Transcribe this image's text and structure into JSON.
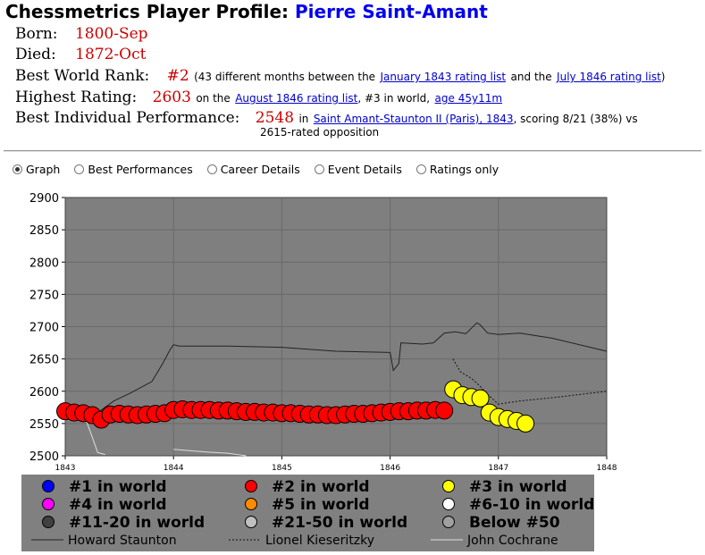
{
  "page": {
    "title_prefix": "Chessmetrics Player Profile:",
    "player_name": "Pierre Saint-Amant"
  },
  "bio": {
    "born_label": "Born:",
    "born_value": "1800-Sep",
    "died_label": "Died:",
    "died_value": "1872-Oct",
    "rank_label": "Best World Rank:",
    "rank_value": "#2",
    "rank_text1": "(43 different months between the",
    "rank_link1": "January 1843 rating list",
    "rank_text2": "and the",
    "rank_link2": "July 1846 rating list",
    "rank_text3": ")",
    "highest_label": "Highest Rating:",
    "highest_value": "2603",
    "highest_text1": "on the",
    "highest_link1": "August 1846 rating list",
    "highest_text2": ", #3 in world,",
    "highest_link2": "age 45y11m",
    "perf_label": "Best Individual Performance:",
    "perf_value": "2548",
    "perf_text1": "in",
    "perf_link1": "Saint Amant-Staunton II (Paris), 1843",
    "perf_text2": ", scoring 8/21 (38%) vs",
    "perf_text3": "2615-rated opposition"
  },
  "view_options": [
    {
      "label": "Graph",
      "selected": true
    },
    {
      "label": "Best Performances",
      "selected": false
    },
    {
      "label": "Career Details",
      "selected": false
    },
    {
      "label": "Event Details",
      "selected": false
    },
    {
      "label": "Ratings only",
      "selected": false
    }
  ],
  "chart_data": {
    "type": "scatter",
    "xlim": [
      1843,
      1848
    ],
    "ylim": [
      2500,
      2900
    ],
    "x_ticks": [
      "1843",
      "1844",
      "1845",
      "1846",
      "1847",
      "1848"
    ],
    "y_ticks": [
      "2900",
      "2850",
      "2800",
      "2750",
      "2700",
      "2650",
      "2600",
      "2550",
      "2500"
    ],
    "grid": true,
    "colors": {
      "plot_bg": "#7f7f7f",
      "rank2": "#ff0000",
      "rank3": "#ffff00",
      "legend_bg": "#808080"
    },
    "series": [
      {
        "name": "#2 in world",
        "color": "#ff0000",
        "points": [
          [
            1843.0,
            2569
          ],
          [
            1843.083,
            2567
          ],
          [
            1843.167,
            2566
          ],
          [
            1843.25,
            2563
          ],
          [
            1843.333,
            2556
          ],
          [
            1843.417,
            2564
          ],
          [
            1843.5,
            2565
          ],
          [
            1843.583,
            2564
          ],
          [
            1843.667,
            2563
          ],
          [
            1843.75,
            2564
          ],
          [
            1843.833,
            2565
          ],
          [
            1843.917,
            2566
          ],
          [
            1844.0,
            2571
          ],
          [
            1844.083,
            2572
          ],
          [
            1844.167,
            2571
          ],
          [
            1844.25,
            2571
          ],
          [
            1844.333,
            2571
          ],
          [
            1844.417,
            2570
          ],
          [
            1844.5,
            2570
          ],
          [
            1844.583,
            2569
          ],
          [
            1844.667,
            2568
          ],
          [
            1844.75,
            2568
          ],
          [
            1844.833,
            2567
          ],
          [
            1844.917,
            2567
          ],
          [
            1845.0,
            2566
          ],
          [
            1845.083,
            2566
          ],
          [
            1845.167,
            2565
          ],
          [
            1845.25,
            2564
          ],
          [
            1845.333,
            2564
          ],
          [
            1845.417,
            2563
          ],
          [
            1845.5,
            2563
          ],
          [
            1845.583,
            2564
          ],
          [
            1845.667,
            2565
          ],
          [
            1845.75,
            2565
          ],
          [
            1845.833,
            2566
          ],
          [
            1845.917,
            2567
          ],
          [
            1846.0,
            2568
          ],
          [
            1846.083,
            2569
          ],
          [
            1846.167,
            2569
          ],
          [
            1846.25,
            2570
          ],
          [
            1846.333,
            2570
          ],
          [
            1846.417,
            2571
          ],
          [
            1846.5,
            2570
          ]
        ]
      },
      {
        "name": "#3 in world",
        "color": "#ffff00",
        "points": [
          [
            1846.583,
            2603
          ],
          [
            1846.667,
            2594
          ],
          [
            1846.75,
            2591
          ],
          [
            1846.833,
            2589
          ],
          [
            1846.917,
            2567
          ],
          [
            1847.0,
            2560
          ],
          [
            1847.083,
            2557
          ],
          [
            1847.167,
            2554
          ],
          [
            1847.25,
            2550
          ]
        ]
      }
    ],
    "lines": [
      {
        "name": "Howard Staunton",
        "style": "solid",
        "color": "#222222",
        "points": [
          [
            1843.3,
            2567
          ],
          [
            1843.45,
            2585
          ],
          [
            1843.6,
            2597
          ],
          [
            1843.8,
            2615
          ],
          [
            1843.9,
            2643
          ],
          [
            1843.97,
            2665
          ],
          [
            1844.0,
            2672
          ],
          [
            1844.05,
            2670
          ],
          [
            1844.2,
            2670
          ],
          [
            1844.5,
            2670
          ],
          [
            1845.0,
            2668
          ],
          [
            1845.5,
            2662
          ],
          [
            1846.0,
            2660
          ],
          [
            1846.03,
            2632
          ],
          [
            1846.08,
            2643
          ],
          [
            1846.1,
            2675
          ],
          [
            1846.3,
            2673
          ],
          [
            1846.4,
            2675
          ],
          [
            1846.5,
            2690
          ],
          [
            1846.6,
            2692
          ],
          [
            1846.7,
            2689
          ],
          [
            1846.8,
            2706
          ],
          [
            1846.83,
            2703
          ],
          [
            1846.9,
            2690
          ],
          [
            1847.0,
            2688
          ],
          [
            1847.2,
            2690
          ],
          [
            1847.5,
            2682
          ],
          [
            1848.0,
            2662
          ]
        ]
      },
      {
        "name": "Lionel Kieseritzky",
        "style": "dotted",
        "color": "#111111",
        "points": [
          [
            1846.58,
            2650
          ],
          [
            1846.65,
            2630
          ],
          [
            1846.75,
            2620
          ],
          [
            1846.83,
            2608
          ],
          [
            1846.9,
            2595
          ],
          [
            1847.0,
            2580
          ],
          [
            1847.2,
            2585
          ],
          [
            1847.5,
            2590
          ],
          [
            1848.0,
            2600
          ]
        ]
      },
      {
        "name": "John Cochrane",
        "style": "solid",
        "color": "#dddddd",
        "points": [
          [
            1843.0,
            2580
          ],
          [
            1843.1,
            2575
          ],
          [
            1843.2,
            2552
          ],
          [
            1843.3,
            2505
          ],
          [
            1843.37,
            2502
          ]
        ]
      },
      {
        "name": "John Cochrane",
        "style": "solid",
        "color": "#dddddd",
        "points": [
          [
            1844.0,
            2510
          ],
          [
            1844.3,
            2506
          ],
          [
            1844.5,
            2504
          ],
          [
            1844.67,
            2500
          ]
        ]
      }
    ],
    "legend": {
      "entries": [
        {
          "label": "#1 in world",
          "color": "#0000ff"
        },
        {
          "label": "#2 in world",
          "color": "#ff0000"
        },
        {
          "label": "#3 in world",
          "color": "#ffff00"
        },
        {
          "label": "#4 in world",
          "color": "#ff00ff"
        },
        {
          "label": "#5 in world",
          "color": "#ff8c00"
        },
        {
          "label": "#6-10 in world",
          "color": "#ffffff"
        },
        {
          "label": "#11-20 in world",
          "color": "#404040"
        },
        {
          "label": "#21-50 in world",
          "color": "#c0c0c0"
        },
        {
          "label": "Below #50",
          "color": "#a0a0a0"
        }
      ],
      "line_entries": [
        {
          "label": "Howard Staunton",
          "style": "solid",
          "color": "#222222"
        },
        {
          "label": "Lionel Kieseritzky",
          "style": "dotted",
          "color": "#111111"
        },
        {
          "label": "John Cochrane",
          "style": "solid",
          "color": "#dddddd"
        }
      ],
      "placement": "bottom"
    }
  }
}
